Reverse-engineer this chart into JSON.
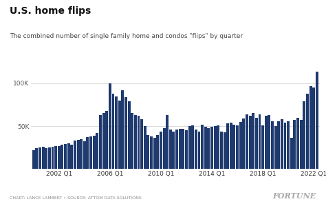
{
  "title": "U.S. home flips",
  "subtitle": "The combined number of single family home and condos \"flips\" by quarter",
  "footer": "CHART: LANCE LAMBERT • SOURCE: ATTOM DATA SOLUTIONS",
  "fortune_logo": "FORTUNE",
  "bar_color": "#1e3a6e",
  "background_color": "#ffffff",
  "ylabel_ticks": [
    "50K",
    "100K"
  ],
  "ytick_values": [
    50000,
    100000
  ],
  "ylim": [
    0,
    130000
  ],
  "x_tick_labels": [
    "2002 Q1",
    "2006 Q1",
    "2010 Q1",
    "2014 Q1",
    "2018 Q1",
    "2022 Q1"
  ],
  "tick_positions": [
    8,
    24,
    40,
    56,
    72,
    88
  ],
  "values": [
    22000,
    24000,
    25000,
    26000,
    24000,
    25000,
    26000,
    27000,
    27000,
    28000,
    29000,
    30000,
    28000,
    33000,
    34000,
    35000,
    32000,
    37000,
    38000,
    39000,
    42000,
    63000,
    65000,
    68000,
    100000,
    88000,
    85000,
    80000,
    92000,
    84000,
    79000,
    65000,
    63000,
    62000,
    58000,
    50000,
    40000,
    38000,
    36000,
    40000,
    44000,
    48000,
    63000,
    46000,
    44000,
    46000,
    47000,
    47000,
    45000,
    50000,
    51000,
    46000,
    44000,
    52000,
    49000,
    48000,
    49000,
    50000,
    51000,
    44000,
    43000,
    53000,
    54000,
    52000,
    51000,
    55000,
    59000,
    64000,
    62000,
    65000,
    60000,
    64000,
    51000,
    62000,
    63000,
    56000,
    50000,
    56000,
    58000,
    54000,
    56000,
    36000,
    57000,
    60000,
    57000,
    79000,
    88000,
    97000,
    95000,
    114000
  ]
}
